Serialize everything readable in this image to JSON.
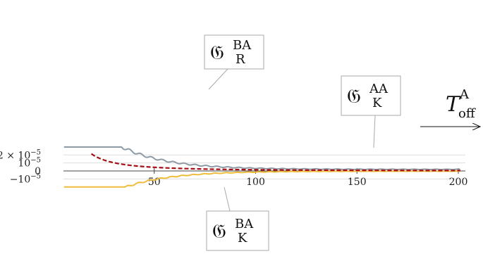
{
  "chart_data": {
    "type": "line",
    "xlim": [
      0,
      200
    ],
    "ylim": [
      -1.1e-05,
      2.1e-05
    ],
    "grid": true,
    "x_ticks": [
      {
        "value": 50,
        "label": "50"
      },
      {
        "value": 100,
        "label": "100"
      },
      {
        "value": 150,
        "label": "150"
      },
      {
        "value": 200,
        "label": "200"
      }
    ],
    "y_ticks": [
      {
        "value": 2e-05,
        "label_main": "2 × 10",
        "label_sup": "−5"
      },
      {
        "value": 1e-05,
        "label_main": "10",
        "label_sup": "−5"
      },
      {
        "value": 0,
        "label_main": "0",
        "label_sup": ""
      },
      {
        "value": -1e-05,
        "label_main": "−10",
        "label_sup": "−5"
      }
    ],
    "axis_label": {
      "main": "T",
      "sup": "A",
      "sub": "off"
    },
    "series": [
      {
        "id": "GR_BA",
        "label_main": "𝔊",
        "label_sup": "BA",
        "label_sub": "R",
        "color": "#8e9ba6",
        "style": "solid",
        "model": "oscillating",
        "offset": 2e-06,
        "center_amp": 0.00013,
        "center_decay": 0.045,
        "osc_amp": 0.00015,
        "osc_power": 1.25,
        "period": 5.4,
        "phase": 0.0,
        "x": [
          30,
          50,
          75,
          100,
          125,
          150,
          175,
          198
        ],
        "y": [
          1.1e-05,
          9.5e-06,
          7.5e-06,
          5.5e-06,
          4.5e-06,
          3.8e-06,
          3.3e-06,
          3e-06
        ]
      },
      {
        "id": "GK_AA",
        "label_main": "𝔊",
        "label_sup": "AA",
        "label_sub": "K",
        "color": "#a50f15",
        "style": "dashed",
        "model": "decay",
        "amplitude": 2.15e-05,
        "x0": 19,
        "power": 1.6,
        "floor": 0.0,
        "x": [
          20,
          30,
          40,
          50,
          75,
          100,
          150,
          200
        ],
        "y": [
          2.1e-05,
          1.12e-05,
          7.5e-06,
          5.5e-06,
          3e-06,
          1.8e-06,
          8e-07,
          4e-07
        ]
      },
      {
        "id": "GK_BA",
        "label_main": "𝔊",
        "label_sup": "BA",
        "label_sub": "K",
        "color": "#f0bc3c",
        "style": "solid",
        "model": "oscillating",
        "offset": -3e-07,
        "center_amp": -0.0001,
        "center_decay": 0.045,
        "osc_amp": 9e-05,
        "osc_power": 1.25,
        "period": 5.4,
        "phase": 1.2,
        "x": [
          30,
          50,
          75,
          100,
          125,
          150,
          175,
          198
        ],
        "y": [
          -4e-06,
          -3.5e-06,
          -2.5e-06,
          -1.5e-06,
          -1e-06,
          -6e-07,
          -5e-07,
          -3e-07
        ]
      }
    ]
  }
}
